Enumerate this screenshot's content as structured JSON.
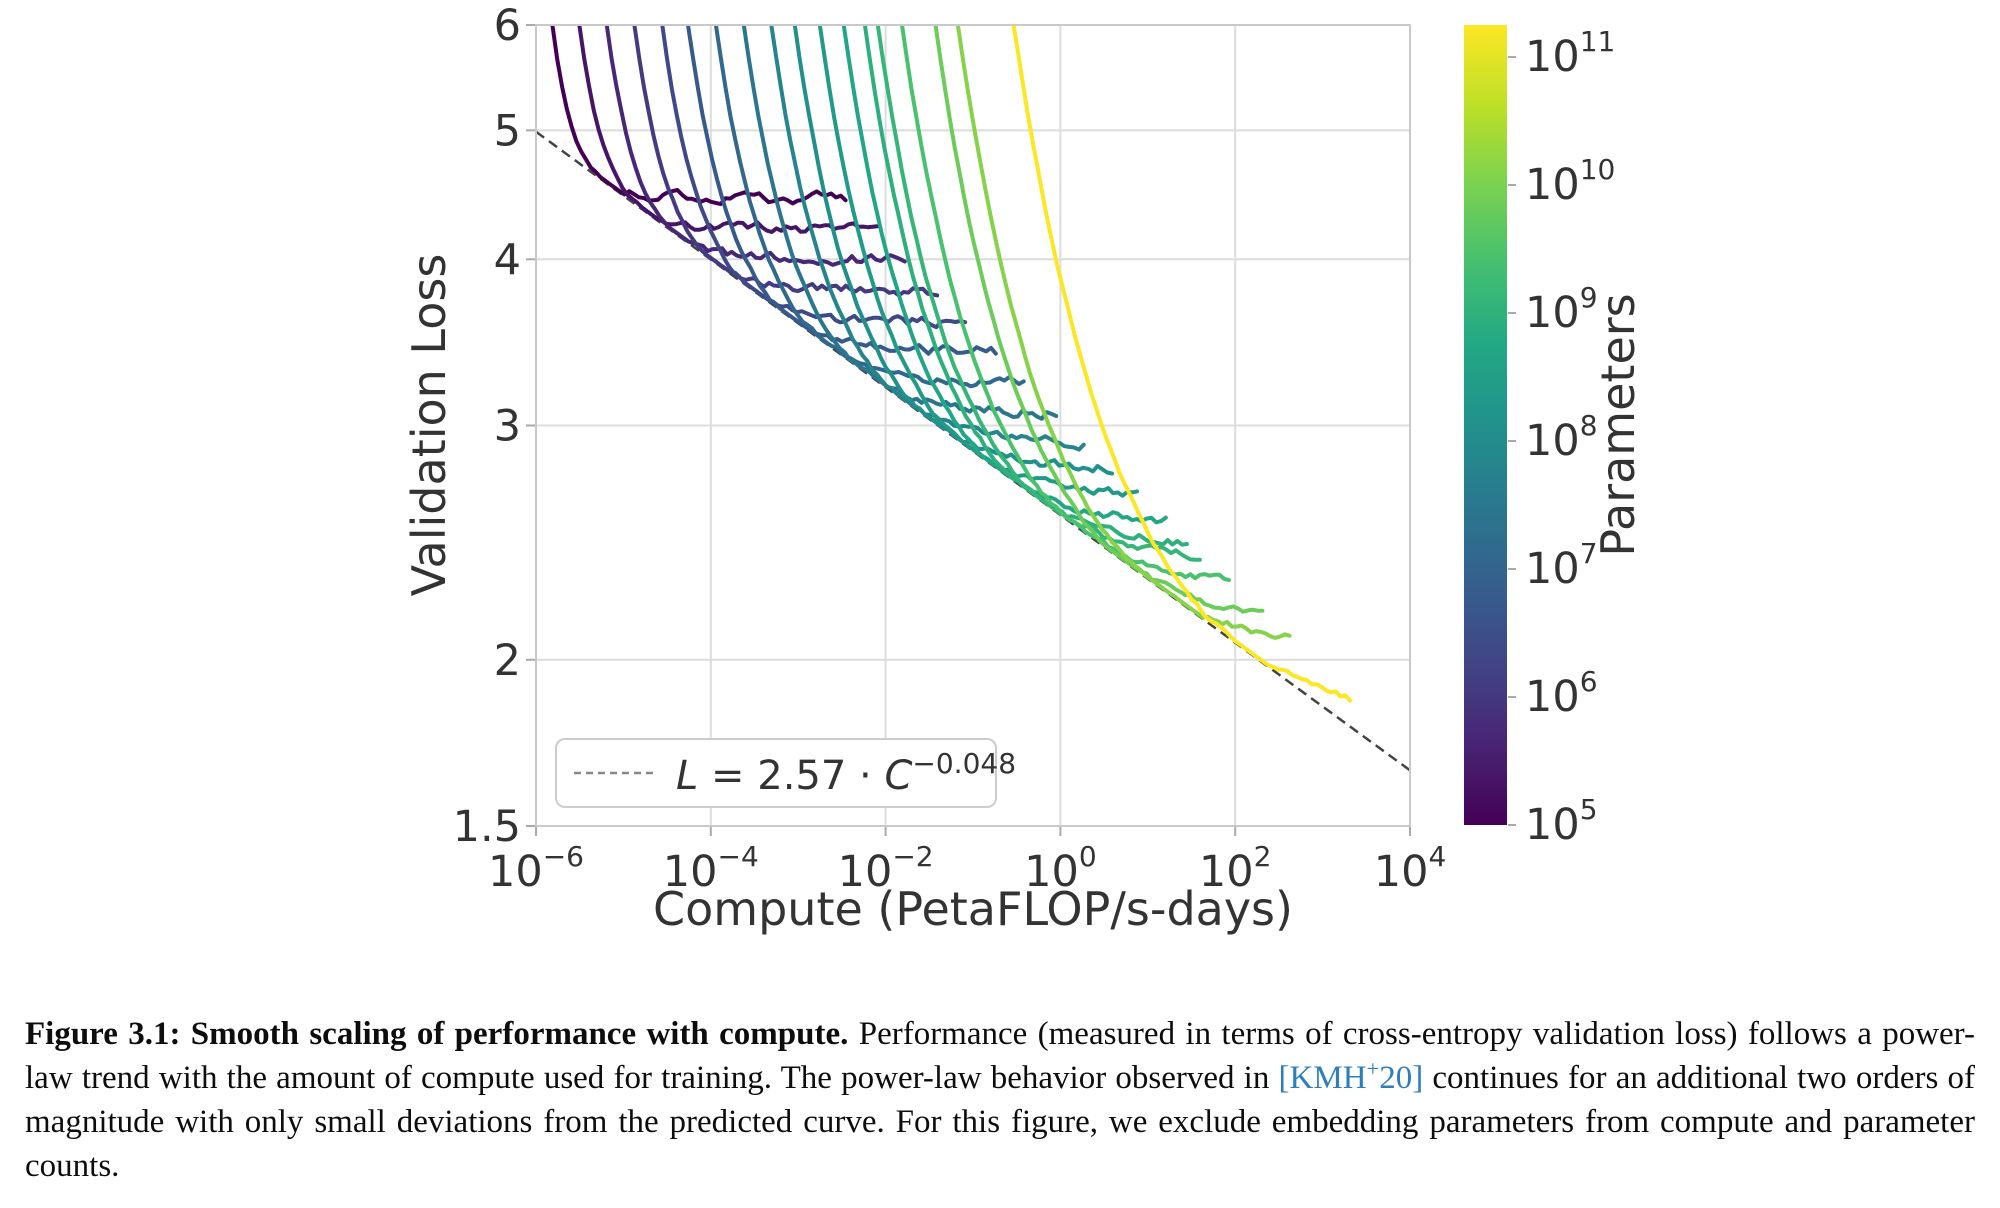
{
  "chart_data": {
    "type": "line",
    "title": "",
    "xlabel": "Compute (PetaFLOP/s-days)",
    "ylabel": "Validation Loss",
    "x_scale": "log10",
    "y_scale": "log10",
    "xlim_log10": [
      -6,
      4
    ],
    "ylim": [
      1.5,
      6
    ],
    "grid": true,
    "x_ticks": [
      {
        "value": -6,
        "exp_label": "−6"
      },
      {
        "value": -4,
        "exp_label": "−4"
      },
      {
        "value": -2,
        "exp_label": "−2"
      },
      {
        "value": 0,
        "exp_label": "0"
      },
      {
        "value": 2,
        "exp_label": "2"
      },
      {
        "value": 4,
        "exp_label": "4"
      }
    ],
    "y_ticks": [
      {
        "value": 6,
        "label": "6"
      },
      {
        "value": 5,
        "label": "5"
      },
      {
        "value": 4,
        "label": "4"
      },
      {
        "value": 3,
        "label": "3"
      },
      {
        "value": 2,
        "label": "2"
      },
      {
        "value": 1.5,
        "label": "1.5"
      }
    ],
    "frontier_fit": {
      "var": "L",
      "equals_part": " = 2.57 · ",
      "base_var": "C",
      "exponent": "−0.048",
      "coef_num": 2.57,
      "exp_num": -0.048,
      "line_style": "dashed",
      "color": "#444444"
    },
    "legend_position": "lower left",
    "colorbar": {
      "label": "Parameters",
      "colormap": "viridis",
      "log10_range": [
        5,
        11.25
      ],
      "ticks": [
        {
          "value": 11,
          "exp_label": "11"
        },
        {
          "value": 10,
          "exp_label": "10"
        },
        {
          "value": 9,
          "exp_label": "9"
        },
        {
          "value": 8,
          "exp_label": "8"
        },
        {
          "value": 7,
          "exp_label": "7"
        },
        {
          "value": 6,
          "exp_label": "6"
        },
        {
          "value": 5,
          "exp_label": "5"
        }
      ],
      "viridis_stops": [
        "#440154",
        "#482475",
        "#414487",
        "#355f8d",
        "#2a788e",
        "#21918c",
        "#22a884",
        "#44bf70",
        "#7ad151",
        "#bddf26",
        "#fde725"
      ]
    },
    "series": [
      {
        "log10_params": 5.0,
        "plateau_loss": 4.45
      },
      {
        "log10_params": 5.35,
        "plateau_loss": 4.22
      },
      {
        "log10_params": 5.7,
        "plateau_loss": 4.0
      },
      {
        "log10_params": 6.05,
        "plateau_loss": 3.79
      },
      {
        "log10_params": 6.4,
        "plateau_loss": 3.59
      },
      {
        "log10_params": 6.75,
        "plateau_loss": 3.41
      },
      {
        "log10_params": 7.1,
        "plateau_loss": 3.23
      },
      {
        "log10_params": 7.45,
        "plateau_loss": 3.06
      },
      {
        "log10_params": 7.8,
        "plateau_loss": 2.9
      },
      {
        "log10_params": 8.1,
        "plateau_loss": 2.77
      },
      {
        "log10_params": 8.4,
        "plateau_loss": 2.64
      },
      {
        "log10_params": 8.7,
        "plateau_loss": 2.52
      },
      {
        "log10_params": 8.95,
        "plateau_loss": 2.42
      },
      {
        "log10_params": 9.11,
        "plateau_loss": 2.36
      },
      {
        "log10_params": 9.43,
        "plateau_loss": 2.25
      },
      {
        "log10_params": 9.83,
        "plateau_loss": 2.11
      },
      {
        "log10_params": 10.11,
        "plateau_loss": 2.02
      },
      {
        "log10_params": 11.24,
        "plateau_loss": 1.78
      }
    ],
    "curve_model": {
      "tau_base": 0.25,
      "tau_scale": 0.95,
      "frontier_log10_coef": 0.40993,
      "frontier_exp": -0.048,
      "loss_top": 6,
      "extend_base": 2.8,
      "extend_scale": -1.6,
      "x_end_max": 3.55,
      "step": 0.055,
      "seed": 20
    },
    "style_colors": {
      "grid": "#dcdcdc",
      "spine": "#c9c9c9",
      "tick": "#aaaaaa",
      "text": "#333333",
      "legend_border": "#cccccc",
      "legend_sample": "#888888"
    }
  },
  "caption": {
    "bold": "Figure 3.1: Smooth scaling of performance with compute.",
    "after_bold": "  Performance (measured in terms of cross-entropy validation loss) follows a power-law trend with the amount of compute used for training. The power-law behavior observed in ",
    "cite_pre": "[KMH",
    "cite_sup": "+",
    "cite_post": "20]",
    "after_cite": " continues for an additional two orders of magnitude with only small deviations from the predicted curve. For this figure, we exclude embedding parameters from compute and parameter counts.",
    "cite_color": "#2e7ebc"
  }
}
